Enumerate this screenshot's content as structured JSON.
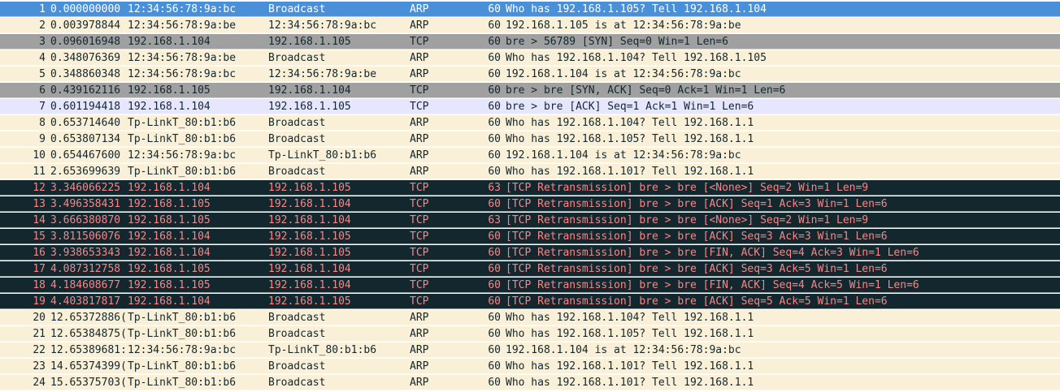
{
  "packets": [
    {
      "no": "1",
      "time": "0.000000000",
      "src": "12:34:56:78:9a:bc",
      "dst": "Broadcast",
      "proto": "ARP",
      "len": "60",
      "info": "Who has 192.168.1.105?  Tell 192.168.1.104",
      "style": "selected"
    },
    {
      "no": "2",
      "time": "0.003978844",
      "src": "12:34:56:78:9a:be",
      "dst": "12:34:56:78:9a:bc",
      "proto": "ARP",
      "len": "60",
      "info": "192.168.1.105 is at 12:34:56:78:9a:be",
      "style": "arp"
    },
    {
      "no": "3",
      "time": "0.096016948",
      "src": "192.168.1.104",
      "dst": "192.168.1.105",
      "proto": "TCP",
      "len": "60",
      "info": "bre > 56789 [SYN] Seq=0 Win=1 Len=6",
      "style": "syn"
    },
    {
      "no": "4",
      "time": "0.348076369",
      "src": "12:34:56:78:9a:be",
      "dst": "Broadcast",
      "proto": "ARP",
      "len": "60",
      "info": "Who has 192.168.1.104?  Tell 192.168.1.105",
      "style": "arp"
    },
    {
      "no": "5",
      "time": "0.348860348",
      "src": "12:34:56:78:9a:bc",
      "dst": "12:34:56:78:9a:be",
      "proto": "ARP",
      "len": "60",
      "info": "192.168.1.104 is at 12:34:56:78:9a:bc",
      "style": "arp"
    },
    {
      "no": "6",
      "time": "0.439162116",
      "src": "192.168.1.105",
      "dst": "192.168.1.104",
      "proto": "TCP",
      "len": "60",
      "info": "bre > bre [SYN, ACK] Seq=0 Ack=1 Win=1 Len=6",
      "style": "syn"
    },
    {
      "no": "7",
      "time": "0.601194418",
      "src": "192.168.1.104",
      "dst": "192.168.1.105",
      "proto": "TCP",
      "len": "60",
      "info": "bre > bre [ACK] Seq=1 Ack=1 Win=1 Len=6",
      "style": "tcp"
    },
    {
      "no": "8",
      "time": "0.653714640",
      "src": "Tp-LinkT_80:b1:b6",
      "dst": "Broadcast",
      "proto": "ARP",
      "len": "60",
      "info": "Who has 192.168.1.104?  Tell 192.168.1.1",
      "style": "arp"
    },
    {
      "no": "9",
      "time": "0.653807134",
      "src": "Tp-LinkT_80:b1:b6",
      "dst": "Broadcast",
      "proto": "ARP",
      "len": "60",
      "info": "Who has 192.168.1.105?  Tell 192.168.1.1",
      "style": "arp"
    },
    {
      "no": "10",
      "time": "0.654467600",
      "src": "12:34:56:78:9a:bc",
      "dst": "Tp-LinkT_80:b1:b6",
      "proto": "ARP",
      "len": "60",
      "info": "192.168.1.104 is at 12:34:56:78:9a:bc",
      "style": "arp"
    },
    {
      "no": "11",
      "time": "2.653699639",
      "src": "Tp-LinkT_80:b1:b6",
      "dst": "Broadcast",
      "proto": "ARP",
      "len": "60",
      "info": "Who has 192.168.1.101?  Tell 192.168.1.1",
      "style": "arp"
    },
    {
      "no": "12",
      "time": "3.346066225",
      "src": "192.168.1.104",
      "dst": "192.168.1.105",
      "proto": "TCP",
      "len": "63",
      "info": "[TCP Retransmission] bre > bre [<None>] Seq=2 Win=1 Len=9",
      "style": "bad"
    },
    {
      "no": "13",
      "time": "3.496358431",
      "src": "192.168.1.105",
      "dst": "192.168.1.104",
      "proto": "TCP",
      "len": "60",
      "info": "[TCP Retransmission] bre > bre [ACK] Seq=1 Ack=3 Win=1 Len=6",
      "style": "bad"
    },
    {
      "no": "14",
      "time": "3.666380870",
      "src": "192.168.1.105",
      "dst": "192.168.1.104",
      "proto": "TCP",
      "len": "63",
      "info": "[TCP Retransmission] bre > bre [<None>] Seq=2 Win=1 Len=9",
      "style": "bad"
    },
    {
      "no": "15",
      "time": "3.811506076",
      "src": "192.168.1.104",
      "dst": "192.168.1.105",
      "proto": "TCP",
      "len": "60",
      "info": "[TCP Retransmission] bre > bre [ACK] Seq=3 Ack=3 Win=1 Len=6",
      "style": "bad"
    },
    {
      "no": "16",
      "time": "3.938653343",
      "src": "192.168.1.104",
      "dst": "192.168.1.105",
      "proto": "TCP",
      "len": "60",
      "info": "[TCP Retransmission] bre > bre [FIN, ACK] Seq=4 Ack=3 Win=1 Len=6",
      "style": "bad"
    },
    {
      "no": "17",
      "time": "4.087312758",
      "src": "192.168.1.105",
      "dst": "192.168.1.104",
      "proto": "TCP",
      "len": "60",
      "info": "[TCP Retransmission] bre > bre [ACK] Seq=3 Ack=5 Win=1 Len=6",
      "style": "bad"
    },
    {
      "no": "18",
      "time": "4.184608677",
      "src": "192.168.1.105",
      "dst": "192.168.1.104",
      "proto": "TCP",
      "len": "60",
      "info": "[TCP Retransmission] bre > bre [FIN, ACK] Seq=4 Ack=5 Win=1 Len=6",
      "style": "bad"
    },
    {
      "no": "19",
      "time": "4.403817817",
      "src": "192.168.1.104",
      "dst": "192.168.1.105",
      "proto": "TCP",
      "len": "60",
      "info": "[TCP Retransmission] bre > bre [ACK] Seq=5 Ack=5 Win=1 Len=6",
      "style": "bad"
    },
    {
      "no": "20",
      "time": "12.65372886(",
      "src": "Tp-LinkT_80:b1:b6",
      "dst": "Broadcast",
      "proto": "ARP",
      "len": "60",
      "info": "Who has 192.168.1.104?  Tell 192.168.1.1",
      "style": "arp"
    },
    {
      "no": "21",
      "time": "12.65384875(",
      "src": "Tp-LinkT_80:b1:b6",
      "dst": "Broadcast",
      "proto": "ARP",
      "len": "60",
      "info": "Who has 192.168.1.105?  Tell 192.168.1.1",
      "style": "arp"
    },
    {
      "no": "22",
      "time": "12.65389681:",
      "src": "12:34:56:78:9a:bc",
      "dst": "Tp-LinkT_80:b1:b6",
      "proto": "ARP",
      "len": "60",
      "info": "192.168.1.104 is at 12:34:56:78:9a:bc",
      "style": "arp"
    },
    {
      "no": "23",
      "time": "14.65374399(",
      "src": "Tp-LinkT_80:b1:b6",
      "dst": "Broadcast",
      "proto": "ARP",
      "len": "60",
      "info": "Who has 192.168.1.101?  Tell 192.168.1.1",
      "style": "arp"
    },
    {
      "no": "24",
      "time": "15.65375703(",
      "src": "Tp-LinkT_80:b1:b6",
      "dst": "Broadcast",
      "proto": "ARP",
      "len": "60",
      "info": "Who has 192.168.1.101?  Tell 192.168.1.1",
      "style": "arp"
    }
  ],
  "colors": {
    "selected_bg": "#4a90d9",
    "arp_bg": "#faf0d7",
    "syn_bg": "#a0a0a0",
    "tcp_bg": "#e7e6ff",
    "bad_bg": "#12272e",
    "bad_fg": "#f78787"
  }
}
